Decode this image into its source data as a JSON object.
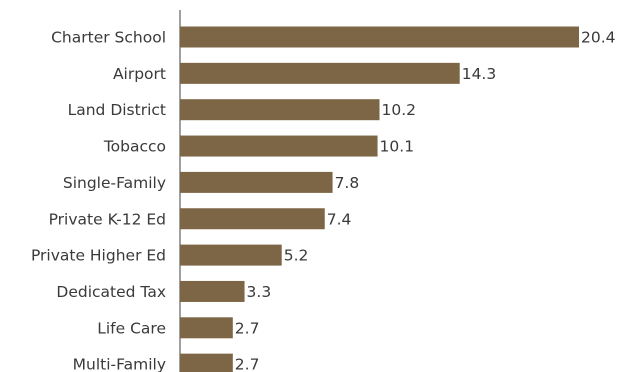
{
  "chart_data": {
    "type": "bar",
    "orientation": "horizontal",
    "categories": [
      "Charter School",
      "Airport",
      "Land District",
      "Tobacco",
      "Single-Family",
      "Private K-12 Ed",
      "Private Higher Ed",
      "Dedicated Tax",
      "Life Care",
      "Multi-Family"
    ],
    "values": [
      20.4,
      14.3,
      10.2,
      10.1,
      7.8,
      7.4,
      5.2,
      3.3,
      2.7,
      2.7
    ],
    "value_labels": [
      "20.4",
      "14.3",
      "10.2",
      "10.1",
      "7.8",
      "7.4",
      "5.2",
      "3.3",
      "2.7",
      "2.7"
    ],
    "xlim": [
      0,
      21
    ],
    "grid": false,
    "colors": {
      "bar": "#7d6645",
      "text": "#3a3a3a",
      "axis": "#404040"
    }
  }
}
